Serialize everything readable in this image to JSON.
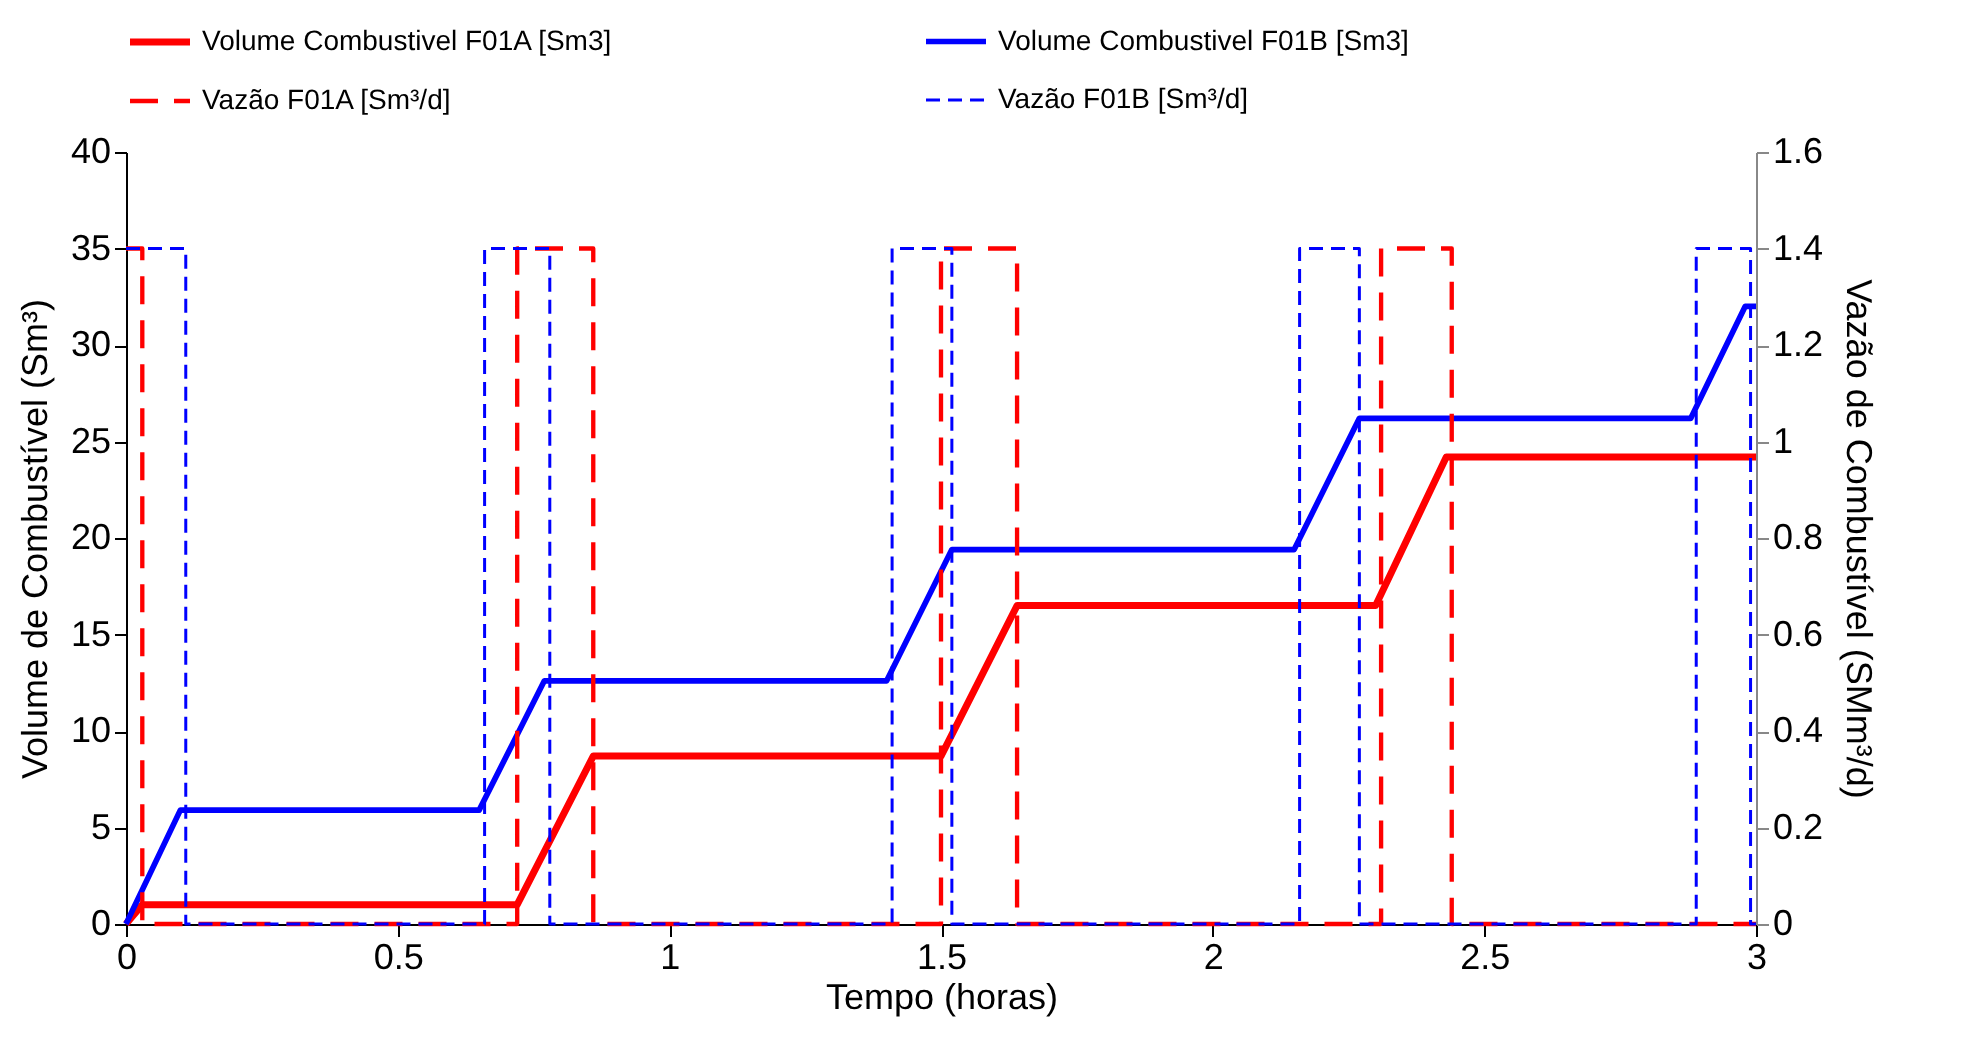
{
  "chart_data": {
    "type": "line",
    "xlabel": "Tempo (horas)",
    "ylabel": "Volume de Combustível (Sm³)",
    "y2label": "Vazão de Combustível (SMm³/d)",
    "xlim": [
      0,
      3
    ],
    "xticks": [
      0,
      0.5,
      1,
      1.5,
      2,
      2.5,
      3
    ],
    "ylim": [
      0,
      40
    ],
    "yticks": [
      0,
      5,
      10,
      15,
      20,
      25,
      30,
      35,
      40
    ],
    "y2lim": [
      0,
      1.6
    ],
    "y2ticks": [
      0,
      0.2,
      0.4,
      0.6,
      0.8,
      1,
      1.2,
      1.4,
      1.6
    ],
    "grid": false,
    "legend": "top",
    "marker": "none",
    "series": [
      {
        "name": "Volume Combustivel F01A [Sm3]",
        "color": "#ff0000",
        "line_style": "solid",
        "x": [
          0,
          0.03,
          0.72,
          0.86,
          1.5,
          1.64,
          2.3,
          2.43,
          3
        ],
        "values": [
          0,
          1,
          1,
          8.7,
          8.7,
          16.5,
          16.5,
          24.2,
          24.2
        ]
      },
      {
        "name": "Volume Combustivel F01B [Sm3]",
        "color": "#0000ff",
        "line_style": "solid",
        "x": [
          0,
          0.1,
          0.65,
          0.77,
          1.4,
          1.52,
          2.15,
          2.27,
          2.88,
          2.98,
          3
        ],
        "values": [
          0,
          5.9,
          5.9,
          12.6,
          12.6,
          19.4,
          19.4,
          26.2,
          26.2,
          32,
          32
        ]
      },
      {
        "name": "Vazão F01A [Sm³/d]",
        "color": "#ff0000",
        "line_style": "dashed",
        "axis": "y2",
        "x": [
          0,
          0.03,
          0.03,
          0.72,
          0.72,
          0.86,
          0.86,
          1.5,
          1.5,
          1.64,
          1.64,
          2.31,
          2.31,
          2.44,
          2.44,
          3
        ],
        "values": [
          1.4,
          1.4,
          0,
          0,
          1.4,
          1.4,
          0,
          0,
          1.4,
          1.4,
          0,
          0,
          1.4,
          1.4,
          0,
          0
        ]
      },
      {
        "name": "Vazão F01B [Sm³/d]",
        "color": "#0000ff",
        "line_style": "dashed",
        "axis": "y2",
        "x": [
          0,
          0.11,
          0.11,
          0.66,
          0.66,
          0.78,
          0.78,
          1.41,
          1.41,
          1.52,
          1.52,
          2.16,
          2.16,
          2.27,
          2.27,
          2.89,
          2.89,
          2.99,
          2.99,
          3
        ],
        "values": [
          1.4,
          1.4,
          0,
          0,
          1.4,
          1.4,
          0,
          0,
          1.4,
          1.4,
          0,
          0,
          1.4,
          1.4,
          0,
          0,
          1.4,
          1.4,
          0,
          0
        ]
      }
    ]
  }
}
